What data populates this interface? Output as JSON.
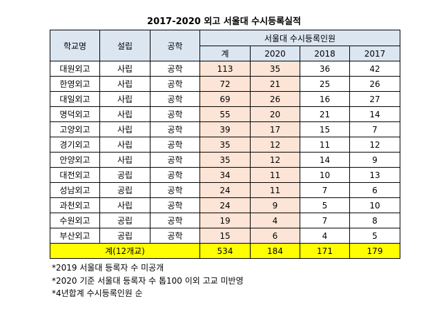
{
  "title": "2017-2020 외고 서울대 수시등록실적",
  "table": {
    "columns": [
      "학교명",
      "설립",
      "공학"
    ],
    "group": "서울대 수시등록인원",
    "subcolumns": [
      "계",
      "2020",
      "2018",
      "2017"
    ],
    "rows": [
      [
        "대원외고",
        "사립",
        "공학",
        113,
        35,
        36,
        42
      ],
      [
        "한영외고",
        "사립",
        "공학",
        72,
        21,
        25,
        26
      ],
      [
        "대일외고",
        "사립",
        "공학",
        69,
        26,
        16,
        27
      ],
      [
        "명덕외고",
        "사립",
        "공학",
        55,
        20,
        21,
        14
      ],
      [
        "고양외고",
        "사립",
        "공학",
        39,
        17,
        15,
        7
      ],
      [
        "경기외고",
        "사립",
        "공학",
        35,
        12,
        11,
        12
      ],
      [
        "안양외고",
        "사립",
        "공학",
        35,
        12,
        14,
        9
      ],
      [
        "대전외고",
        "공립",
        "공학",
        34,
        11,
        10,
        13
      ],
      [
        "성남외고",
        "공립",
        "공학",
        24,
        11,
        7,
        6
      ],
      [
        "과천외고",
        "사립",
        "공학",
        24,
        9,
        5,
        10
      ],
      [
        "수원외고",
        "공립",
        "공학",
        19,
        4,
        7,
        8
      ],
      [
        "부산외고",
        "공립",
        "공학",
        15,
        6,
        4,
        5
      ]
    ],
    "total": {
      "label": "계(12개교)",
      "values": [
        534,
        184,
        171,
        179
      ]
    }
  },
  "notes": [
    "*2019 서울대 등록자 수 미공개",
    "*2020 기준 서울대 등록자 수 톱100 이외 고교 미반영",
    "*4년합계 수시등록인원 순"
  ]
}
